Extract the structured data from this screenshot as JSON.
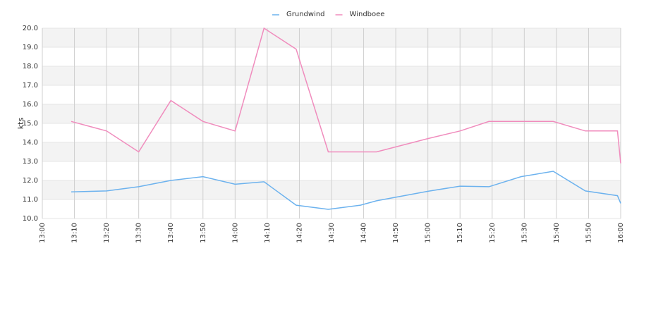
{
  "chart_data": {
    "type": "line",
    "y_label": "kts",
    "x": [
      "13:09",
      "13:20",
      "13:30",
      "13:40",
      "13:50",
      "14:00",
      "14:09",
      "14:19",
      "14:29",
      "14:39",
      "14:44",
      "15:00",
      "15:10",
      "15:19",
      "15:29",
      "15:39",
      "15:49",
      "15:59",
      "16:00"
    ],
    "series": [
      {
        "name": "Grundwind",
        "color": "#6cb2ee",
        "values": [
          11.4,
          11.45,
          11.67,
          12.0,
          12.2,
          11.8,
          11.93,
          10.7,
          10.48,
          10.7,
          10.93,
          11.43,
          11.7,
          11.67,
          12.2,
          12.48,
          11.45,
          11.2,
          10.8
        ]
      },
      {
        "name": "Windboee",
        "color": "#f08cbd",
        "values": [
          15.1,
          14.6,
          13.5,
          16.2,
          15.1,
          14.6,
          20.0,
          18.9,
          13.5,
          13.5,
          13.5,
          14.2,
          14.6,
          15.1,
          15.1,
          15.1,
          14.6,
          14.6,
          12.9
        ]
      }
    ],
    "xlim": [
      "13:00",
      "16:00"
    ],
    "xticks": [
      "13:00",
      "13:10",
      "13:20",
      "13:30",
      "13:40",
      "13:50",
      "14:00",
      "14:10",
      "14:20",
      "14:30",
      "14:40",
      "14:50",
      "15:00",
      "15:10",
      "15:20",
      "15:30",
      "15:40",
      "15:50",
      "16:00"
    ],
    "ylim": [
      10,
      20
    ],
    "yticks": [
      {
        "value": 10,
        "label": "10.0"
      },
      {
        "value": 11,
        "label": "11.0"
      },
      {
        "value": 12,
        "label": "12.0"
      },
      {
        "value": 13,
        "label": "13.0"
      },
      {
        "value": 14,
        "label": "14.0"
      },
      {
        "value": 15,
        "label": "15.0"
      },
      {
        "value": 16,
        "label": "16.0"
      },
      {
        "value": 17,
        "label": "17.0"
      },
      {
        "value": 18,
        "label": "18.0"
      },
      {
        "value": 19,
        "label": "19.0"
      },
      {
        "value": 20,
        "label": "20.0"
      }
    ],
    "grid": true,
    "legend": "top"
  }
}
